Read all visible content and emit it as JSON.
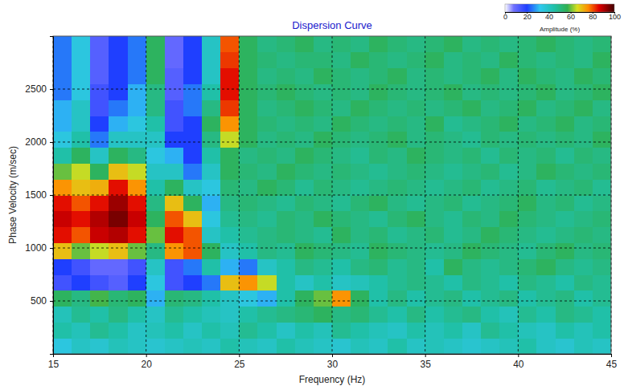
{
  "chart_data": {
    "type": "heatmap",
    "title": "Dispersion Curve",
    "x_label": "Frequency (Hz)",
    "y_label": "Phase Velocity (m/sec)",
    "xlim": [
      15,
      45
    ],
    "xticks": [
      15,
      20,
      25,
      30,
      35,
      40,
      45
    ],
    "ylim": [
      0,
      3000
    ],
    "yticks": [
      500,
      1000,
      1500,
      2000,
      2500
    ],
    "grid": true,
    "x": [
      15.5,
      16.5,
      17.5,
      18.5,
      19.5,
      20.5,
      21.5,
      22.5,
      23.5,
      24.5,
      25.5,
      26.5,
      27.5,
      28.5,
      29.5,
      30.5,
      31.5,
      32.5,
      33.5,
      34.5,
      35.5,
      36.5,
      37.5,
      38.5,
      39.5,
      40.5,
      41.5,
      42.5,
      43.5,
      44.5
    ],
    "y": [
      75,
      225,
      375,
      525,
      675,
      825,
      975,
      1125,
      1275,
      1425,
      1575,
      1725,
      1875,
      2025,
      2175,
      2325,
      2475,
      2625,
      2775,
      2925
    ],
    "values": [
      [
        35,
        40,
        38,
        42,
        40,
        38,
        40,
        42,
        40,
        45,
        42,
        40,
        45,
        42,
        40,
        38,
        42,
        40,
        45,
        40,
        42,
        40,
        38,
        40,
        42,
        45,
        40,
        38,
        42,
        40
      ],
      [
        45,
        42,
        48,
        45,
        40,
        42,
        45,
        40,
        45,
        42,
        48,
        45,
        40,
        45,
        42,
        48,
        45,
        42,
        40,
        45,
        42,
        45,
        40,
        48,
        45,
        42,
        40,
        45,
        42,
        45
      ],
      [
        42,
        48,
        45,
        50,
        45,
        40,
        48,
        45,
        42,
        40,
        45,
        48,
        50,
        52,
        55,
        50,
        52,
        48,
        45,
        50,
        45,
        48,
        50,
        45,
        42,
        48,
        45,
        50,
        48,
        45
      ],
      [
        55,
        50,
        58,
        52,
        55,
        30,
        52,
        50,
        45,
        40,
        35,
        30,
        45,
        55,
        60,
        75,
        55,
        45,
        50,
        45,
        48,
        50,
        45,
        48,
        50,
        45,
        48,
        50,
        45,
        48
      ],
      [
        15,
        20,
        15,
        12,
        20,
        35,
        15,
        20,
        25,
        70,
        75,
        65,
        45,
        40,
        45,
        40,
        42,
        45,
        48,
        50,
        48,
        45,
        50,
        48,
        45,
        50,
        48,
        45,
        50,
        48
      ],
      [
        20,
        15,
        10,
        10,
        15,
        40,
        15,
        25,
        45,
        30,
        25,
        40,
        45,
        50,
        48,
        45,
        50,
        52,
        48,
        50,
        45,
        55,
        50,
        48,
        50,
        52,
        55,
        50,
        48,
        50
      ],
      [
        70,
        60,
        65,
        70,
        60,
        50,
        75,
        80,
        55,
        40,
        45,
        50,
        48,
        55,
        52,
        50,
        48,
        55,
        52,
        50,
        48,
        50,
        55,
        52,
        50,
        48,
        52,
        55,
        50,
        52
      ],
      [
        85,
        80,
        88,
        90,
        85,
        60,
        85,
        80,
        40,
        45,
        48,
        50,
        52,
        50,
        48,
        55,
        50,
        52,
        48,
        50,
        52,
        48,
        50,
        55,
        52,
        50,
        48,
        50,
        52,
        50
      ],
      [
        88,
        85,
        90,
        95,
        88,
        55,
        80,
        70,
        35,
        48,
        50,
        48,
        52,
        50,
        55,
        52,
        50,
        48,
        52,
        55,
        50,
        48,
        52,
        50,
        55,
        52,
        50,
        48,
        50,
        52
      ],
      [
        85,
        80,
        85,
        92,
        85,
        50,
        70,
        55,
        30,
        50,
        52,
        50,
        48,
        52,
        50,
        48,
        52,
        55,
        50,
        48,
        50,
        52,
        48,
        50,
        52,
        55,
        50,
        52,
        48,
        50
      ],
      [
        75,
        70,
        72,
        85,
        75,
        45,
        55,
        40,
        35,
        52,
        50,
        55,
        52,
        48,
        52,
        50,
        48,
        50,
        52,
        50,
        48,
        50,
        52,
        48,
        50,
        52,
        48,
        50,
        52,
        48
      ],
      [
        60,
        65,
        55,
        70,
        65,
        40,
        40,
        25,
        40,
        55,
        52,
        50,
        55,
        52,
        50,
        52,
        50,
        48,
        50,
        52,
        50,
        48,
        50,
        52,
        48,
        50,
        55,
        52,
        50,
        52
      ],
      [
        45,
        55,
        40,
        55,
        50,
        35,
        30,
        20,
        45,
        55,
        50,
        52,
        50,
        55,
        52,
        50,
        48,
        52,
        50,
        55,
        52,
        50,
        52,
        48,
        52,
        50,
        52,
        48,
        52,
        50
      ],
      [
        35,
        45,
        25,
        40,
        40,
        40,
        20,
        20,
        50,
        65,
        55,
        50,
        52,
        50,
        55,
        52,
        50,
        52,
        55,
        50,
        52,
        50,
        48,
        52,
        50,
        52,
        50,
        52,
        50,
        55
      ],
      [
        30,
        40,
        20,
        30,
        35,
        45,
        15,
        20,
        55,
        75,
        55,
        52,
        50,
        52,
        50,
        55,
        52,
        50,
        52,
        50,
        55,
        48,
        50,
        52,
        55,
        50,
        52,
        55,
        50,
        52
      ],
      [
        30,
        40,
        15,
        25,
        30,
        50,
        15,
        25,
        50,
        82,
        55,
        50,
        52,
        55,
        52,
        50,
        55,
        52,
        50,
        52,
        50,
        52,
        55,
        50,
        52,
        55,
        50,
        52,
        55,
        50
      ],
      [
        25,
        35,
        15,
        20,
        30,
        50,
        12,
        25,
        45,
        85,
        55,
        52,
        55,
        52,
        50,
        52,
        50,
        55,
        52,
        50,
        52,
        55,
        50,
        52,
        50,
        52,
        55,
        50,
        52,
        55
      ],
      [
        25,
        35,
        12,
        20,
        25,
        55,
        12,
        20,
        40,
        85,
        55,
        50,
        52,
        50,
        55,
        52,
        50,
        52,
        55,
        50,
        52,
        50,
        52,
        55,
        50,
        55,
        52,
        50,
        55,
        52
      ],
      [
        25,
        35,
        12,
        20,
        25,
        55,
        10,
        20,
        40,
        82,
        55,
        52,
        50,
        52,
        52,
        50,
        55,
        52,
        50,
        52,
        55,
        50,
        52,
        50,
        55,
        52,
        50,
        52,
        50,
        55
      ],
      [
        25,
        35,
        12,
        20,
        25,
        55,
        10,
        20,
        40,
        80,
        55,
        50,
        52,
        55,
        50,
        52,
        50,
        55,
        52,
        50,
        52,
        55,
        50,
        52,
        50,
        52,
        55,
        52,
        50,
        52
      ]
    ],
    "colorbar": {
      "title": "Amplitude (%)",
      "range": [
        0,
        100
      ],
      "ticks": [
        0,
        20,
        40,
        60,
        80,
        100
      ]
    }
  }
}
